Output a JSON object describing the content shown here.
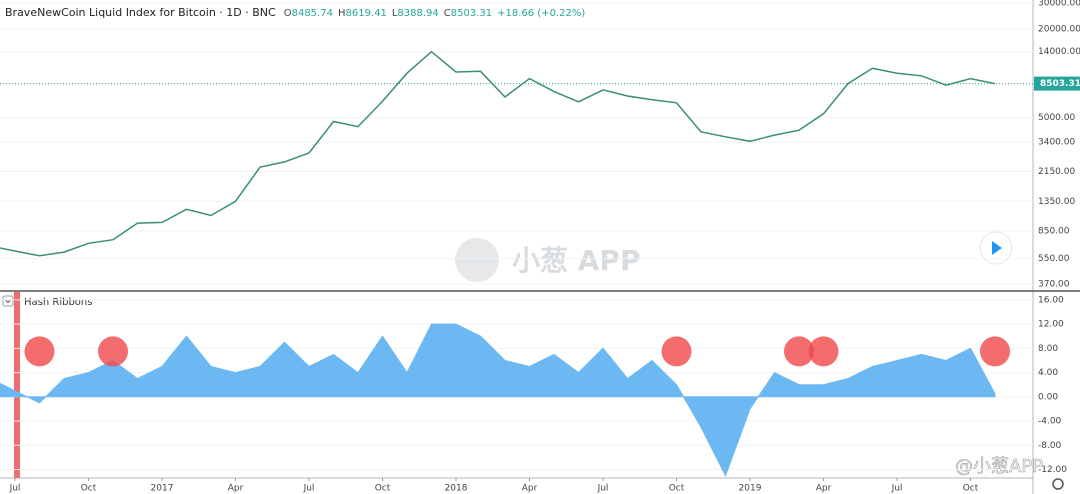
{
  "chart_data": [
    {
      "type": "line",
      "title": "BraveNewCoin Liquid Index for Bitcoin · 1D · BNC",
      "ohlc": [
        {
          "label": "O",
          "value": "8485.74"
        },
        {
          "label": "H",
          "value": "8619.41"
        },
        {
          "label": "L",
          "value": "8388.94"
        },
        {
          "label": "C",
          "value": "8503.31"
        }
      ],
      "change": "+18.66 (+0.22%)",
      "last_price": {
        "value": 8503.31,
        "label": "8503.31"
      },
      "log_scale": true,
      "grid": true,
      "color": "#3a8f6e",
      "x": [
        "2016-06",
        "2016-07",
        "2016-08",
        "2016-09",
        "2016-10",
        "2016-11",
        "2016-12",
        "2017-01",
        "2017-02",
        "2017-03",
        "2017-04",
        "2017-05",
        "2017-06",
        "2017-07",
        "2017-08",
        "2017-09",
        "2017-10",
        "2017-11",
        "2017-12",
        "2018-01",
        "2018-02",
        "2018-03",
        "2018-04",
        "2018-05",
        "2018-06",
        "2018-07",
        "2018-08",
        "2018-09",
        "2018-10",
        "2018-11",
        "2018-12",
        "2019-01",
        "2019-02",
        "2019-03",
        "2019-04",
        "2019-05",
        "2019-06",
        "2019-07",
        "2019-08",
        "2019-09",
        "2019-10",
        "2019-11"
      ],
      "values": [
        670,
        620,
        575,
        610,
        700,
        740,
        960,
        970,
        1190,
        1080,
        1350,
        2300,
        2500,
        2870,
        4700,
        4340,
        6450,
        10000,
        14000,
        10200,
        10300,
        6900,
        9200,
        7500,
        6400,
        7700,
        7000,
        6600,
        6300,
        4000,
        3700,
        3450,
        3800,
        4100,
        5300,
        8500,
        10800,
        10000,
        9600,
        8300,
        9200,
        8503.31
      ],
      "ylim": [
        337,
        31440
      ],
      "yticks": [
        {
          "value": 30000,
          "label": "30000.00"
        },
        {
          "value": 20000,
          "label": "20000.00"
        },
        {
          "value": 14000,
          "label": "14000.00"
        },
        {
          "value": 5000,
          "label": "5000.00"
        },
        {
          "value": 3400,
          "label": "3400.00"
        },
        {
          "value": 2150,
          "label": "2150.00"
        },
        {
          "value": 1350,
          "label": "1350.00"
        },
        {
          "value": 850,
          "label": "850.00"
        },
        {
          "value": 550,
          "label": "550.00"
        },
        {
          "value": 370,
          "label": "370.00"
        }
      ],
      "watermark": "小葱 APP"
    },
    {
      "type": "area",
      "title": "Hash Ribbons",
      "color": "#6cb8f2",
      "grid": true,
      "x": [
        "2016-06",
        "2016-07",
        "2016-08",
        "2016-09",
        "2016-10",
        "2016-11",
        "2016-12",
        "2017-01",
        "2017-02",
        "2017-03",
        "2017-04",
        "2017-05",
        "2017-06",
        "2017-07",
        "2017-08",
        "2017-09",
        "2017-10",
        "2017-11",
        "2017-12",
        "2018-01",
        "2018-02",
        "2018-03",
        "2018-04",
        "2018-05",
        "2018-06",
        "2018-07",
        "2018-08",
        "2018-09",
        "2018-10",
        "2018-11",
        "2018-12",
        "2019-01",
        "2019-02",
        "2019-03",
        "2019-04",
        "2019-05",
        "2019-06",
        "2019-07",
        "2019-08",
        "2019-09",
        "2019-10",
        "2019-11"
      ],
      "values": [
        3,
        1,
        -1,
        3,
        4,
        6,
        3,
        5,
        10,
        5,
        4,
        5,
        9,
        5,
        7,
        4,
        10,
        4,
        12,
        12,
        10,
        6,
        5,
        7,
        4,
        8,
        3,
        6,
        2,
        -5,
        -13,
        -2,
        4,
        2,
        2,
        3,
        5,
        6,
        7,
        6,
        8,
        0.5
      ],
      "signals": [
        "2016-08",
        "2016-11",
        "2018-10",
        "2019-03",
        "2019-04",
        "2019-11"
      ],
      "signal_color": "#f0484a",
      "signal_level": 7.5,
      "ylim": [
        -13.4,
        17.3
      ],
      "yticks": [
        {
          "value": 16,
          "label": "16.00"
        },
        {
          "value": 12,
          "label": "12.00"
        },
        {
          "value": 8,
          "label": "8.00"
        },
        {
          "value": 4,
          "label": "4.00"
        },
        {
          "value": 0,
          "label": "0.00"
        },
        {
          "value": -4,
          "label": "-4.00"
        },
        {
          "value": -8,
          "label": "-8.00"
        },
        {
          "value": -12,
          "label": "-12.00"
        }
      ],
      "xticks": [
        {
          "value": "2016-07",
          "label": "Jul"
        },
        {
          "value": "2016-10",
          "label": "Oct"
        },
        {
          "value": "2017-01",
          "label": "2017"
        },
        {
          "value": "2017-04",
          "label": "Apr"
        },
        {
          "value": "2017-07",
          "label": "Jul"
        },
        {
          "value": "2017-10",
          "label": "Oct"
        },
        {
          "value": "2018-01",
          "label": "2018"
        },
        {
          "value": "2018-04",
          "label": "Apr"
        },
        {
          "value": "2018-07",
          "label": "Jul"
        },
        {
          "value": "2018-10",
          "label": "Oct"
        },
        {
          "value": "2019-01",
          "label": "2019"
        },
        {
          "value": "2019-04",
          "label": "Apr"
        },
        {
          "value": "2019-07",
          "label": "Jul"
        },
        {
          "value": "2019-10",
          "label": "Oct"
        }
      ],
      "watermark": "@小葱APP"
    }
  ]
}
